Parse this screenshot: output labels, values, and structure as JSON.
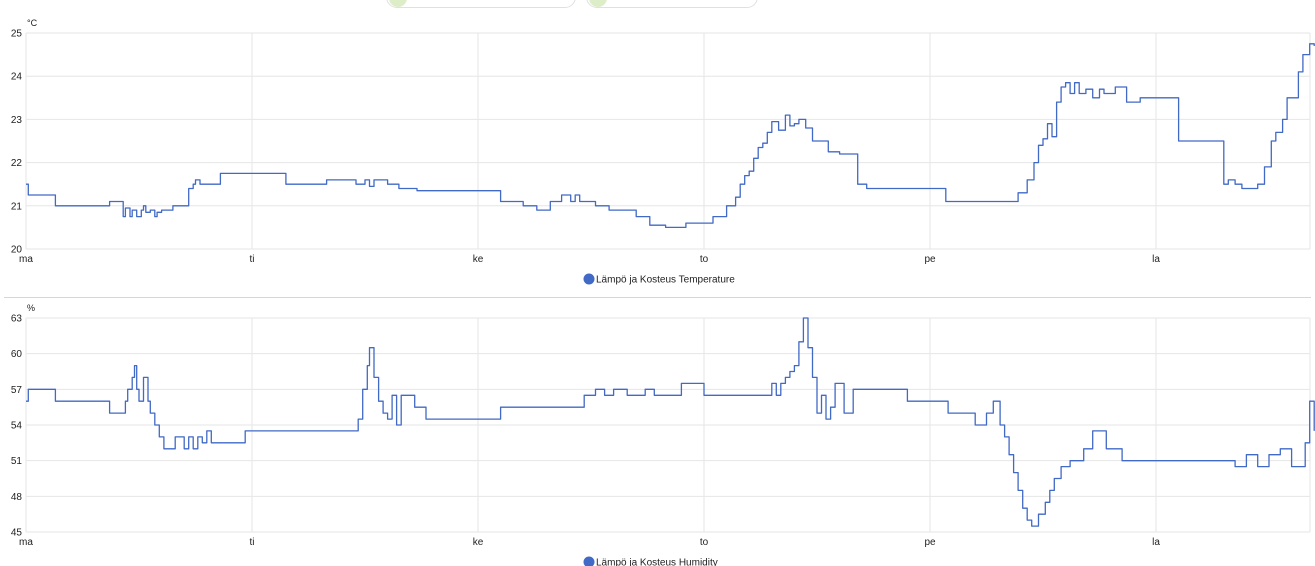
{
  "colors": {
    "series": "#4169c6",
    "grid": "#e6e6e6",
    "chip_icon": "#dcedc8"
  },
  "chips": [
    {
      "icon": "sensor-chip-icon"
    },
    {
      "icon": "sensor-chip-icon"
    }
  ],
  "chart_data": [
    {
      "type": "line",
      "ylabel": "°C",
      "ylim": [
        20,
        25
      ],
      "yticks": [
        20,
        21,
        22,
        23,
        24,
        25
      ],
      "xlim": [
        0,
        5.7
      ],
      "xticks": [
        0,
        1,
        2,
        3,
        4,
        5
      ],
      "xtick_labels": [
        "ma",
        "ti",
        "ke",
        "to",
        "pe",
        "la"
      ],
      "legend": {
        "position": "bottom-center",
        "label": "Lämpö ja Kosteus Temperature"
      },
      "grid": true,
      "series": [
        {
          "name": "Lämpö ja Kosteus Temperature",
          "x": [
            0,
            0.01,
            0.13,
            0.37,
            0.43,
            0.44,
            0.46,
            0.47,
            0.49,
            0.51,
            0.52,
            0.53,
            0.55,
            0.57,
            0.58,
            0.6,
            0.65,
            0.72,
            0.74,
            0.75,
            0.77,
            0.8,
            0.86,
            1.07,
            1.15,
            1.33,
            1.46,
            1.5,
            1.52,
            1.54,
            1.6,
            1.65,
            1.73,
            1.77,
            2.1,
            2.2,
            2.26,
            2.32,
            2.37,
            2.41,
            2.43,
            2.45,
            2.48,
            2.52,
            2.58,
            2.7,
            2.76,
            2.83,
            2.92,
            3.04,
            3.1,
            3.14,
            3.16,
            3.18,
            3.2,
            3.22,
            3.24,
            3.26,
            3.28,
            3.3,
            3.33,
            3.36,
            3.38,
            3.4,
            3.42,
            3.45,
            3.48,
            3.5,
            3.55,
            3.6,
            3.64,
            3.68,
            3.72,
            4.0,
            4.07,
            4.39,
            4.43,
            4.46,
            4.48,
            4.5,
            4.52,
            4.54,
            4.56,
            4.58,
            4.6,
            4.62,
            4.64,
            4.66,
            4.69,
            4.72,
            4.75,
            4.77,
            4.82,
            4.87,
            4.93,
            4.97,
            5.1,
            5.17,
            5.3,
            5.32,
            5.35,
            5.38,
            5.45,
            5.48,
            5.51,
            5.53,
            5.56,
            5.58,
            5.6,
            5.63,
            5.65,
            5.68,
            5.7
          ],
          "y": [
            21.5,
            21.25,
            21.0,
            21.1,
            20.75,
            20.95,
            20.75,
            20.9,
            20.75,
            20.9,
            21.0,
            20.85,
            20.9,
            20.75,
            20.85,
            20.9,
            21.0,
            21.4,
            21.5,
            21.6,
            21.5,
            21.5,
            21.75,
            21.75,
            21.5,
            21.6,
            21.5,
            21.6,
            21.45,
            21.6,
            21.5,
            21.4,
            21.35,
            21.35,
            21.1,
            21.0,
            20.9,
            21.1,
            21.25,
            21.1,
            21.25,
            21.1,
            21.1,
            21.0,
            20.9,
            20.75,
            20.55,
            20.5,
            20.6,
            20.75,
            21.0,
            21.2,
            21.5,
            21.7,
            21.8,
            22.1,
            22.35,
            22.45,
            22.7,
            22.95,
            22.75,
            23.1,
            22.85,
            22.9,
            23.0,
            22.8,
            22.5,
            22.5,
            22.25,
            22.2,
            22.2,
            21.5,
            21.4,
            21.4,
            21.1,
            21.3,
            21.6,
            22.0,
            22.4,
            22.55,
            22.9,
            22.6,
            23.4,
            23.75,
            23.85,
            23.6,
            23.85,
            23.6,
            23.7,
            23.5,
            23.7,
            23.6,
            23.75,
            23.4,
            23.5,
            23.5,
            22.5,
            22.5,
            21.5,
            21.6,
            21.5,
            21.4,
            21.5,
            21.9,
            22.5,
            22.7,
            23.0,
            23.5,
            23.5,
            24.1,
            24.5,
            24.75,
            24.7
          ]
        }
      ]
    },
    {
      "type": "line",
      "ylabel": "%",
      "ylim": [
        45,
        63
      ],
      "yticks": [
        45,
        48,
        51,
        54,
        57,
        60,
        63
      ],
      "xlim": [
        0,
        5.7
      ],
      "xticks": [
        0,
        1,
        2,
        3,
        4,
        5
      ],
      "xtick_labels": [
        "ma",
        "ti",
        "ke",
        "to",
        "pe",
        "la"
      ],
      "legend": {
        "position": "bottom-center",
        "label": "Lämpö ja Kosteus Humidity"
      },
      "grid": true,
      "series": [
        {
          "name": "Lämpö ja Kosteus Humidity",
          "x": [
            0,
            0.01,
            0.13,
            0.37,
            0.44,
            0.45,
            0.47,
            0.48,
            0.49,
            0.5,
            0.52,
            0.54,
            0.55,
            0.57,
            0.59,
            0.61,
            0.63,
            0.66,
            0.7,
            0.72,
            0.74,
            0.76,
            0.78,
            0.8,
            0.82,
            0.86,
            0.97,
            1.33,
            1.47,
            1.49,
            1.51,
            1.52,
            1.54,
            1.56,
            1.58,
            1.6,
            1.62,
            1.64,
            1.66,
            1.72,
            1.77,
            2.1,
            2.42,
            2.47,
            2.52,
            2.56,
            2.6,
            2.66,
            2.74,
            2.78,
            2.9,
            3.0,
            3.2,
            3.3,
            3.32,
            3.34,
            3.36,
            3.38,
            3.4,
            3.42,
            3.44,
            3.46,
            3.48,
            3.5,
            3.52,
            3.54,
            3.56,
            3.58,
            3.62,
            3.66,
            3.72,
            3.9,
            4.0,
            4.08,
            4.16,
            4.2,
            4.25,
            4.28,
            4.31,
            4.33,
            4.35,
            4.37,
            4.39,
            4.41,
            4.43,
            4.45,
            4.48,
            4.51,
            4.53,
            4.55,
            4.58,
            4.62,
            4.68,
            4.72,
            4.78,
            4.85,
            5.0,
            5.3,
            5.35,
            5.4,
            5.45,
            5.5,
            5.55,
            5.6,
            5.63,
            5.66,
            5.68,
            5.7
          ],
          "y": [
            56.0,
            57.0,
            56.0,
            55.0,
            56.0,
            57.0,
            58.0,
            59.0,
            57.0,
            56.0,
            58.0,
            56.0,
            55.0,
            54.0,
            53.0,
            52.0,
            52.0,
            53.0,
            52.0,
            53.0,
            52.0,
            53.0,
            52.5,
            53.5,
            52.5,
            52.5,
            53.5,
            53.5,
            54.5,
            57.0,
            59.0,
            60.5,
            58.0,
            56.0,
            55.0,
            54.5,
            56.5,
            54.0,
            56.5,
            55.5,
            54.5,
            55.5,
            55.5,
            56.5,
            57.0,
            56.5,
            57.0,
            56.5,
            57.0,
            56.5,
            57.5,
            56.5,
            56.5,
            57.5,
            56.5,
            57.5,
            58.0,
            58.5,
            59.0,
            61.0,
            63.0,
            60.5,
            58.0,
            55.0,
            56.5,
            54.5,
            55.5,
            57.5,
            55.0,
            57.0,
            57.0,
            56.0,
            56.0,
            55.0,
            55.0,
            54.0,
            55.0,
            56.0,
            54.0,
            53.0,
            51.5,
            50.0,
            48.5,
            47.0,
            46.0,
            45.5,
            46.5,
            47.5,
            48.5,
            49.5,
            50.5,
            51.0,
            52.0,
            53.5,
            52.0,
            51.0,
            51.0,
            51.0,
            50.5,
            51.5,
            50.5,
            51.5,
            52.0,
            50.5,
            50.5,
            52.5,
            56.0,
            53.5
          ]
        }
      ]
    }
  ]
}
